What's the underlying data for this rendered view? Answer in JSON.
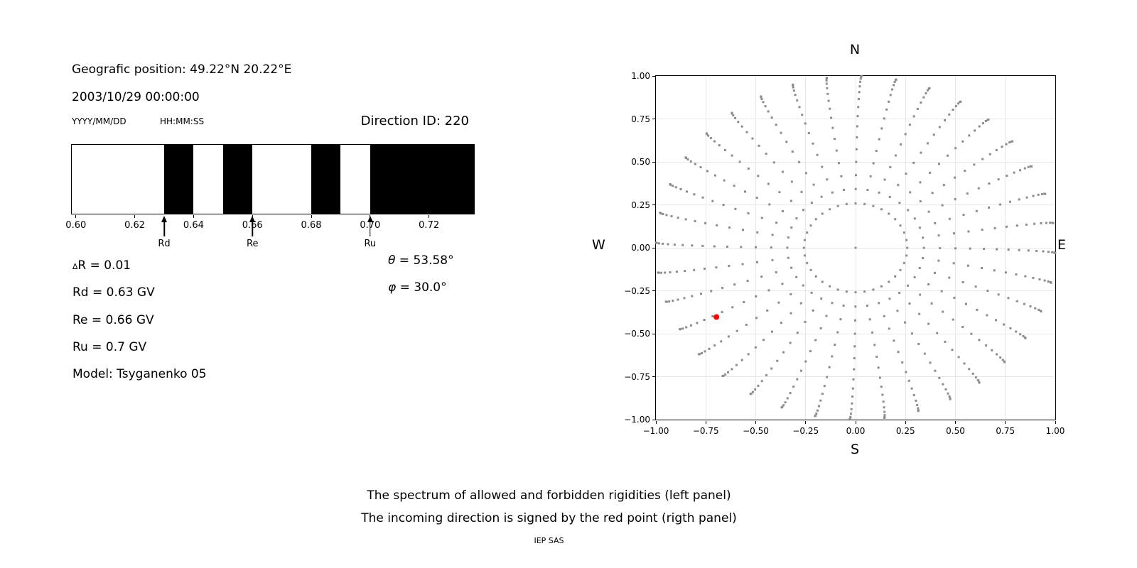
{
  "figure": {
    "background": "#ffffff",
    "captions": [
      "The spectrum of allowed and forbidden rigidities (left panel)",
      "The incoming direction is signed by the red point (rigth panel)"
    ],
    "credit": "IEP SAS"
  },
  "header": {
    "geo": "Geografic position: 49.22°N 20.22°E",
    "datetime": "2003/10/29 00:00:00",
    "date_format": "YYYY/MM/DD",
    "time_format": "HH:MM:SS",
    "direction_id": "Direction ID: 220"
  },
  "params": {
    "delta_symbol": "∆",
    "delta_rest": "R = 0.01",
    "rd": "Rd = 0.63 GV",
    "re": "Re = 0.66 GV",
    "ru": "Ru = 0.7 GV",
    "model": "Model: Tsyganenko 05",
    "theta_symbol": "θ",
    "theta_rest": " = 53.58°",
    "phi_symbol": "φ",
    "phi_rest": " = 30.0°"
  },
  "chart_data": [
    {
      "id": "rigidity-spectrum",
      "type": "bands",
      "description": "Allowed (white) and forbidden (black) rigidity intervals in GV",
      "xlim": [
        0.5986,
        0.7353
      ],
      "xticks": {
        "values": [
          0.6,
          0.62,
          0.64,
          0.66,
          0.68,
          0.7,
          0.72
        ],
        "labels": [
          "0.60",
          "0.62",
          "0.64",
          "0.66",
          "0.68",
          "0.70",
          "0.72"
        ]
      },
      "forbidden_bands_gv": [
        [
          0.63,
          0.64
        ],
        [
          0.65,
          0.66
        ],
        [
          0.68,
          0.69
        ],
        [
          0.7,
          0.7353
        ]
      ],
      "band_color": "#000000",
      "allowed_color": "#ffffff",
      "arrows": [
        {
          "label": "Rd",
          "value_gv": 0.63
        },
        {
          "label": "Re",
          "value_gv": 0.66
        },
        {
          "label": "Ru",
          "value_gv": 0.7
        }
      ]
    },
    {
      "id": "incoming-direction-map",
      "type": "scatter",
      "xlim": [
        -1,
        1
      ],
      "ylim": [
        -1,
        1
      ],
      "xticks": {
        "values": [
          -1,
          -0.75,
          -0.5,
          -0.25,
          0,
          0.25,
          0.5,
          0.75,
          1
        ],
        "labels": [
          "−1.00",
          "−0.75",
          "−0.50",
          "−0.25",
          "0.00",
          "0.25",
          "0.50",
          "0.75",
          "1.00"
        ]
      },
      "yticks": {
        "values": [
          -1,
          -0.75,
          -0.5,
          -0.25,
          0,
          0.25,
          0.5,
          0.75,
          1
        ],
        "labels": [
          "−1.00",
          "−0.75",
          "−0.50",
          "−0.25",
          "0.00",
          "0.25",
          "0.50",
          "0.75",
          "1.00"
        ]
      },
      "compass": {
        "north": "N",
        "south": "S",
        "east": "E",
        "west": "W"
      },
      "grid": {
        "step": 0.25,
        "color": "#e8e8e8",
        "on": true
      },
      "direction_grid_dots": {
        "color": "#8c8c8c",
        "dot_size_px": 3,
        "center_dot": true,
        "azimuth_count": 36,
        "azimuth_step_deg": 10,
        "zenith_start_deg": 15,
        "zenith_end_deg": 90,
        "zenith_step_deg": 5,
        "radial_mapping": "sin(zenith)",
        "azimuth_drift_deg_per_zenith_deg": 0.023
      },
      "red_point": {
        "x": -0.697,
        "y": -0.403,
        "color": "#ff0000",
        "radius_px": 4
      }
    }
  ]
}
